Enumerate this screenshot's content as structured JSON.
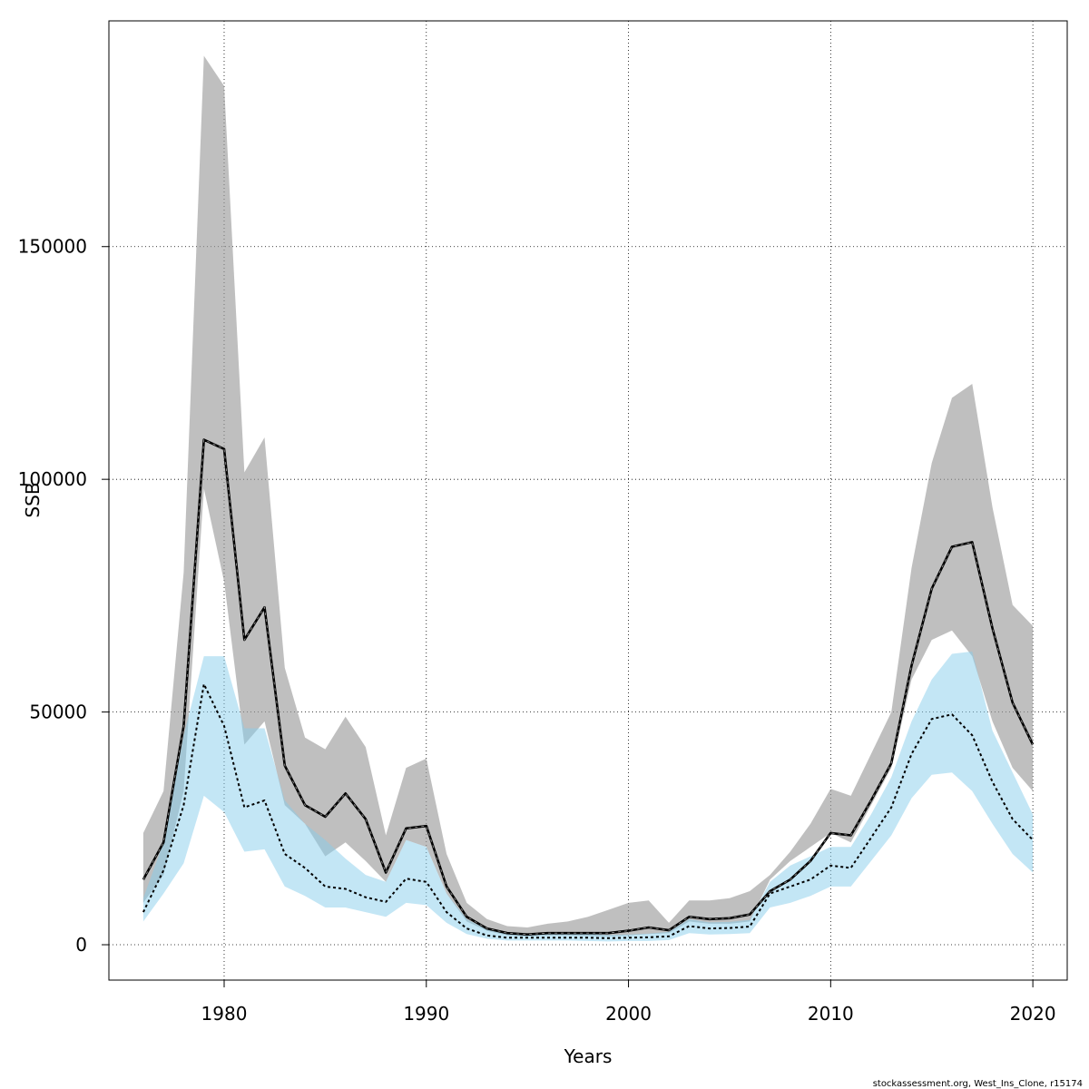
{
  "chart_data": {
    "type": "area",
    "title": "",
    "xlabel": "Years",
    "ylabel": "SSB",
    "xlim": [
      1974.3,
      2021.7
    ],
    "ylim": [
      -7600,
      198500
    ],
    "xticks": [
      1980,
      1990,
      2000,
      2010,
      2020
    ],
    "yticks": [
      0,
      50000,
      100000,
      150000
    ],
    "xtick_labels": [
      "1980",
      "1990",
      "2000",
      "2010",
      "2020"
    ],
    "ytick_labels": [
      "0",
      "50000",
      "100000",
      "150000"
    ],
    "grid": true,
    "legend": "none",
    "footer": "stockassessment.org, West_Ins_Clone, r15174",
    "colors": {
      "band_a": "#999999",
      "band_b": "#87CEEB",
      "line_a": "#000000",
      "line_b": "#000000"
    },
    "x": [
      1976,
      1977,
      1978,
      1979,
      1980,
      1981,
      1982,
      1983,
      1984,
      1985,
      1986,
      1987,
      1988,
      1989,
      1990,
      1991,
      1992,
      1993,
      1994,
      1995,
      1996,
      1997,
      1998,
      1999,
      2000,
      2001,
      2002,
      2003,
      2004,
      2005,
      2006,
      2007,
      2008,
      2009,
      2010,
      2011,
      2012,
      2013,
      2014,
      2015,
      2016,
      2017,
      2018,
      2019,
      2020
    ],
    "series": [
      {
        "line_style": "solid",
        "values": [
          14000,
          22000,
          47000,
          108500,
          106500,
          65500,
          72500,
          38500,
          30000,
          27500,
          32500,
          27000,
          15500,
          25000,
          25500,
          12500,
          6000,
          3500,
          2500,
          2200,
          2500,
          2500,
          2500,
          2500,
          3000,
          3700,
          3100,
          6000,
          5500,
          5700,
          6500,
          11500,
          14000,
          18000,
          24000,
          23500,
          31000,
          39000,
          60000,
          76500,
          85500,
          86500,
          68000,
          52000,
          43000
        ],
        "lower": [
          9000,
          15000,
          33000,
          98000,
          78000,
          43000,
          48000,
          30000,
          26000,
          19000,
          22000,
          18000,
          13500,
          22500,
          21000,
          11000,
          5000,
          3000,
          2000,
          1800,
          2000,
          2000,
          1900,
          1800,
          2000,
          2300,
          2500,
          5000,
          4500,
          4500,
          5000,
          14000,
          18000,
          21000,
          24000,
          22000,
          30000,
          38000,
          57000,
          65500,
          67500,
          62000,
          48000,
          38000,
          33000
        ],
        "upper": [
          24000,
          33000,
          80000,
          191000,
          184500,
          101500,
          109000,
          59500,
          44500,
          42000,
          49000,
          42500,
          23500,
          38000,
          40000,
          19500,
          9000,
          5500,
          4000,
          3700,
          4500,
          5000,
          6000,
          7500,
          9000,
          9500,
          4700,
          9500,
          9500,
          10000,
          11500,
          15000,
          20000,
          26000,
          33500,
          32000,
          41000,
          50000,
          81000,
          103500,
          117500,
          120500,
          94000,
          73000,
          68500
        ]
      },
      {
        "line_style": "dashed",
        "values": [
          7000,
          16000,
          30000,
          56000,
          47000,
          29500,
          31000,
          19500,
          16500,
          12500,
          12000,
          10200,
          9200,
          14200,
          13500,
          7000,
          3500,
          2000,
          1500,
          1500,
          1500,
          1500,
          1500,
          1400,
          1500,
          1600,
          1800,
          4000,
          3500,
          3600,
          3900,
          11000,
          12500,
          14000,
          17000,
          16500,
          23000,
          29500,
          41000,
          48500,
          49500,
          45000,
          35000,
          27000,
          22500
        ],
        "lower": [
          5000,
          11000,
          17500,
          32000,
          28500,
          20000,
          20500,
          12500,
          10500,
          8000,
          8000,
          7000,
          6000,
          9000,
          8500,
          4700,
          2300,
          1300,
          900,
          900,
          900,
          900,
          800,
          700,
          800,
          800,
          1000,
          2500,
          2200,
          2300,
          2500,
          8000,
          9000,
          10500,
          12500,
          12500,
          18000,
          23500,
          31500,
          36500,
          37000,
          33000,
          26000,
          19500,
          15500
        ],
        "upper": [
          10000,
          22000,
          45000,
          62000,
          62000,
          46500,
          46500,
          31000,
          26000,
          22500,
          18500,
          15000,
          13500,
          22500,
          21000,
          11000,
          5500,
          3300,
          2500,
          2400,
          2400,
          2400,
          2300,
          2100,
          2200,
          2400,
          2800,
          5500,
          4800,
          4900,
          5300,
          13500,
          17000,
          19000,
          21000,
          21000,
          28000,
          36000,
          48000,
          57000,
          62500,
          63000,
          46000,
          37000,
          28000
        ]
      }
    ]
  }
}
